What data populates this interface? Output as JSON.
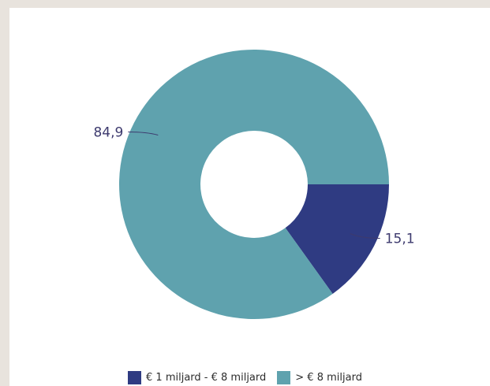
{
  "chart_data": {
    "type": "pie",
    "subtype": "donut",
    "title": "",
    "categories": [
      "€ 1 miljard - € 8 miljard",
      "> € 8 miljard"
    ],
    "values": [
      15.1,
      84.9
    ],
    "value_labels": [
      "15,1",
      "84,9"
    ],
    "colors": [
      "#2f3b82",
      "#5fa2ae"
    ],
    "legend_position": "bottom"
  }
}
